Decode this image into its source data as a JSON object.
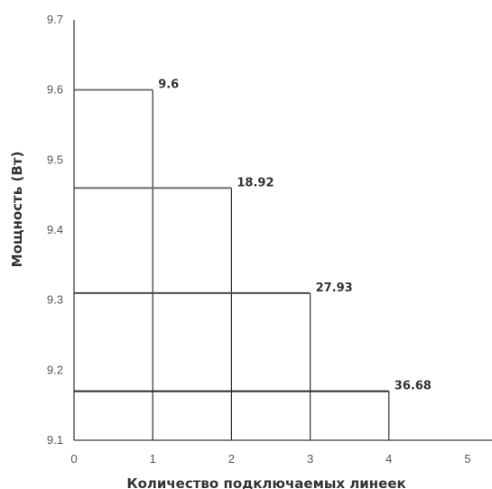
{
  "chart_data": {
    "type": "line",
    "xlabel": "Количество подключаемых линеек",
    "ylabel": "Мощность (Вт)",
    "xlim": [
      0,
      5
    ],
    "ylim": [
      9.1,
      9.7
    ],
    "x_ticks": [
      "0",
      "1",
      "2",
      "3",
      "4",
      "5"
    ],
    "y_ticks": [
      "9.1",
      "9.2",
      "9.3",
      "9.4",
      "9.5",
      "9.6",
      "9.7"
    ],
    "grid": false,
    "points": [
      {
        "x": 1,
        "y": 9.6,
        "label": "9.6"
      },
      {
        "x": 2,
        "y": 9.46,
        "label": "18.92"
      },
      {
        "x": 3,
        "y": 9.31,
        "label": "27.93"
      },
      {
        "x": 4,
        "y": 9.17,
        "label": "36.68"
      }
    ],
    "line_colors": [
      "#777777",
      "#6a6a6a",
      "#4a4a4a",
      "#2a2a2a"
    ]
  }
}
